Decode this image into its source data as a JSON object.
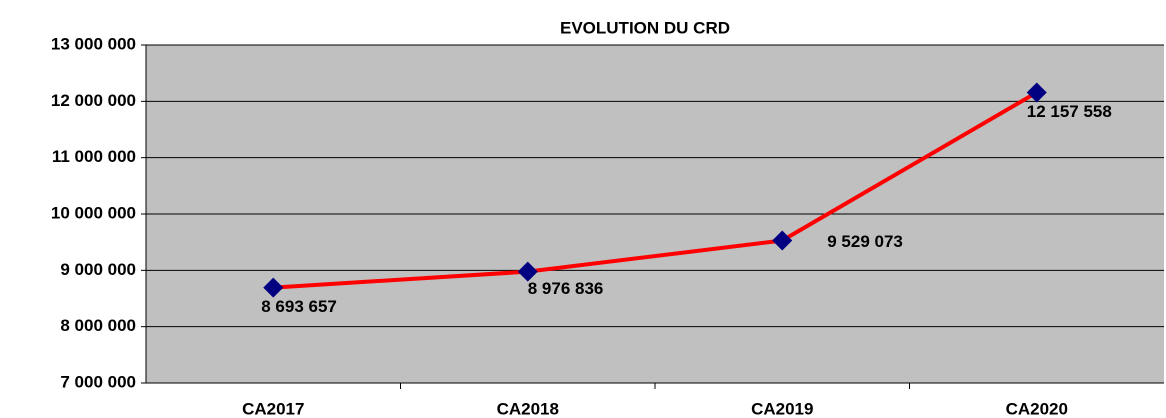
{
  "chart_data": {
    "type": "line",
    "title": "EVOLUTION DU CRD",
    "categories": [
      "CA2017",
      "CA2018",
      "CA2019",
      "CA2020"
    ],
    "series": [
      {
        "name": "CRD",
        "color": "#ff0000",
        "marker_color": "#000080",
        "values": [
          8693657,
          8976836,
          9529073,
          12157558
        ],
        "value_labels": [
          "8 693 657",
          "8 976 836",
          "9 529 073",
          "12 157 558"
        ]
      }
    ],
    "ylim": [
      7000000,
      13000000
    ],
    "yticks": [
      {
        "value": 7000000,
        "label": "7 000 000"
      },
      {
        "value": 8000000,
        "label": "8 000 000"
      },
      {
        "value": 9000000,
        "label": "9 000 000"
      },
      {
        "value": 10000000,
        "label": "10 000 000"
      },
      {
        "value": 11000000,
        "label": "11 000 000"
      },
      {
        "value": 12000000,
        "label": "12 000 000"
      },
      {
        "value": 13000000,
        "label": "13 000 000"
      }
    ],
    "grid": true
  }
}
